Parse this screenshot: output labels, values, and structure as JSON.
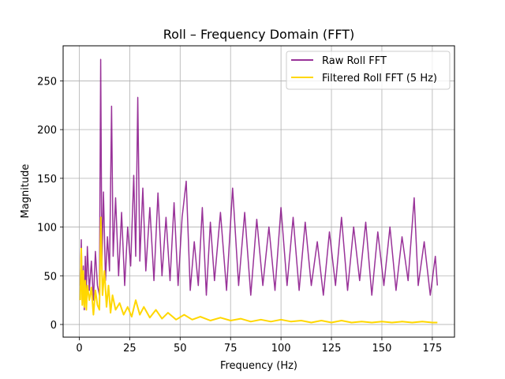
{
  "chart_data": {
    "type": "line",
    "title": "Roll – Frequency Domain (FFT)",
    "xlabel": "Frequency (Hz)",
    "ylabel": "Magnitude",
    "xlim": [
      -8,
      186
    ],
    "ylim": [
      -13,
      286
    ],
    "xticks": [
      0,
      25,
      50,
      75,
      100,
      125,
      150,
      175
    ],
    "yticks": [
      0,
      50,
      100,
      150,
      200,
      250
    ],
    "grid": true,
    "legend_position": "top-right",
    "series": [
      {
        "name": "Raw Roll FFT",
        "color": "#800080",
        "points": [
          [
            0.5,
            40
          ],
          [
            1.0,
            87
          ],
          [
            1.5,
            20
          ],
          [
            2.0,
            60
          ],
          [
            2.5,
            15
          ],
          [
            3.0,
            70
          ],
          [
            3.5,
            30
          ],
          [
            4.0,
            80
          ],
          [
            5.0,
            35
          ],
          [
            6.0,
            65
          ],
          [
            7.0,
            25
          ],
          [
            8.0,
            75
          ],
          [
            9.0,
            40
          ],
          [
            10.0,
            30
          ],
          [
            10.6,
            272
          ],
          [
            11.2,
            60
          ],
          [
            12.0,
            136
          ],
          [
            13.0,
            45
          ],
          [
            14.0,
            90
          ],
          [
            15.0,
            55
          ],
          [
            16.0,
            224
          ],
          [
            16.8,
            70
          ],
          [
            18.0,
            130
          ],
          [
            19.5,
            50
          ],
          [
            21.0,
            115
          ],
          [
            22.5,
            40
          ],
          [
            24.0,
            100
          ],
          [
            25.5,
            60
          ],
          [
            27.0,
            153
          ],
          [
            28.0,
            70
          ],
          [
            29.0,
            233
          ],
          [
            30.0,
            65
          ],
          [
            31.5,
            140
          ],
          [
            33.0,
            55
          ],
          [
            35.0,
            120
          ],
          [
            37.0,
            45
          ],
          [
            39.0,
            135
          ],
          [
            41.0,
            50
          ],
          [
            43.0,
            110
          ],
          [
            45.0,
            45
          ],
          [
            47.0,
            125
          ],
          [
            49.0,
            40
          ],
          [
            51.0,
            110
          ],
          [
            53.0,
            147
          ],
          [
            55.0,
            35
          ],
          [
            57.0,
            85
          ],
          [
            59.0,
            40
          ],
          [
            61.0,
            120
          ],
          [
            63.0,
            30
          ],
          [
            65.0,
            105
          ],
          [
            67.0,
            45
          ],
          [
            70.0,
            115
          ],
          [
            73.0,
            35
          ],
          [
            76.0,
            140
          ],
          [
            79.0,
            40
          ],
          [
            82.0,
            115
          ],
          [
            85.0,
            30
          ],
          [
            88.0,
            108
          ],
          [
            91.0,
            40
          ],
          [
            94.0,
            100
          ],
          [
            97.0,
            35
          ],
          [
            100.0,
            120
          ],
          [
            103.0,
            40
          ],
          [
            106.0,
            110
          ],
          [
            109.0,
            35
          ],
          [
            112.0,
            105
          ],
          [
            115.0,
            40
          ],
          [
            118.0,
            85
          ],
          [
            121.0,
            30
          ],
          [
            124.0,
            95
          ],
          [
            127.0,
            40
          ],
          [
            130.0,
            110
          ],
          [
            133.0,
            35
          ],
          [
            136.0,
            100
          ],
          [
            139.0,
            45
          ],
          [
            142.0,
            105
          ],
          [
            145.0,
            30
          ],
          [
            148.0,
            95
          ],
          [
            151.0,
            40
          ],
          [
            154.0,
            100
          ],
          [
            157.0,
            35
          ],
          [
            160.0,
            90
          ],
          [
            163.0,
            45
          ],
          [
            166.0,
            130
          ],
          [
            168.0,
            40
          ],
          [
            171.0,
            85
          ],
          [
            174.0,
            30
          ],
          [
            176.5,
            70
          ],
          [
            177.5,
            40
          ]
        ]
      },
      {
        "name": "Filtered Roll FFT (5 Hz)",
        "color": "#FFD700",
        "points": [
          [
            0.5,
            25
          ],
          [
            1.0,
            78
          ],
          [
            1.5,
            20
          ],
          [
            2.0,
            55
          ],
          [
            2.5,
            18
          ],
          [
            3.0,
            45
          ],
          [
            3.5,
            15
          ],
          [
            4.0,
            40
          ],
          [
            5.0,
            25
          ],
          [
            6.0,
            38
          ],
          [
            7.0,
            10
          ],
          [
            8.0,
            35
          ],
          [
            9.0,
            20
          ],
          [
            10.0,
            15
          ],
          [
            10.7,
            110
          ],
          [
            11.5,
            30
          ],
          [
            12.5,
            55
          ],
          [
            13.5,
            18
          ],
          [
            14.5,
            40
          ],
          [
            15.5,
            12
          ],
          [
            16.5,
            30
          ],
          [
            18.0,
            15
          ],
          [
            20.0,
            22
          ],
          [
            22.0,
            10
          ],
          [
            24.0,
            18
          ],
          [
            26.0,
            8
          ],
          [
            28.0,
            25
          ],
          [
            30.0,
            10
          ],
          [
            32.0,
            18
          ],
          [
            35.0,
            7
          ],
          [
            38.0,
            15
          ],
          [
            41.0,
            6
          ],
          [
            44.0,
            12
          ],
          [
            48.0,
            5
          ],
          [
            52.0,
            10
          ],
          [
            56.0,
            5
          ],
          [
            60.0,
            8
          ],
          [
            65.0,
            4
          ],
          [
            70.0,
            7
          ],
          [
            75.0,
            4
          ],
          [
            80.0,
            6
          ],
          [
            85.0,
            3
          ],
          [
            90.0,
            5
          ],
          [
            95.0,
            3
          ],
          [
            100.0,
            5
          ],
          [
            105.0,
            3
          ],
          [
            110.0,
            4
          ],
          [
            115.0,
            2
          ],
          [
            120.0,
            4
          ],
          [
            125.0,
            2
          ],
          [
            130.0,
            4
          ],
          [
            135.0,
            2
          ],
          [
            140.0,
            3
          ],
          [
            145.0,
            2
          ],
          [
            150.0,
            3
          ],
          [
            155.0,
            2
          ],
          [
            160.0,
            3
          ],
          [
            165.0,
            2
          ],
          [
            170.0,
            3
          ],
          [
            175.0,
            2
          ],
          [
            177.5,
            2
          ]
        ]
      }
    ]
  }
}
